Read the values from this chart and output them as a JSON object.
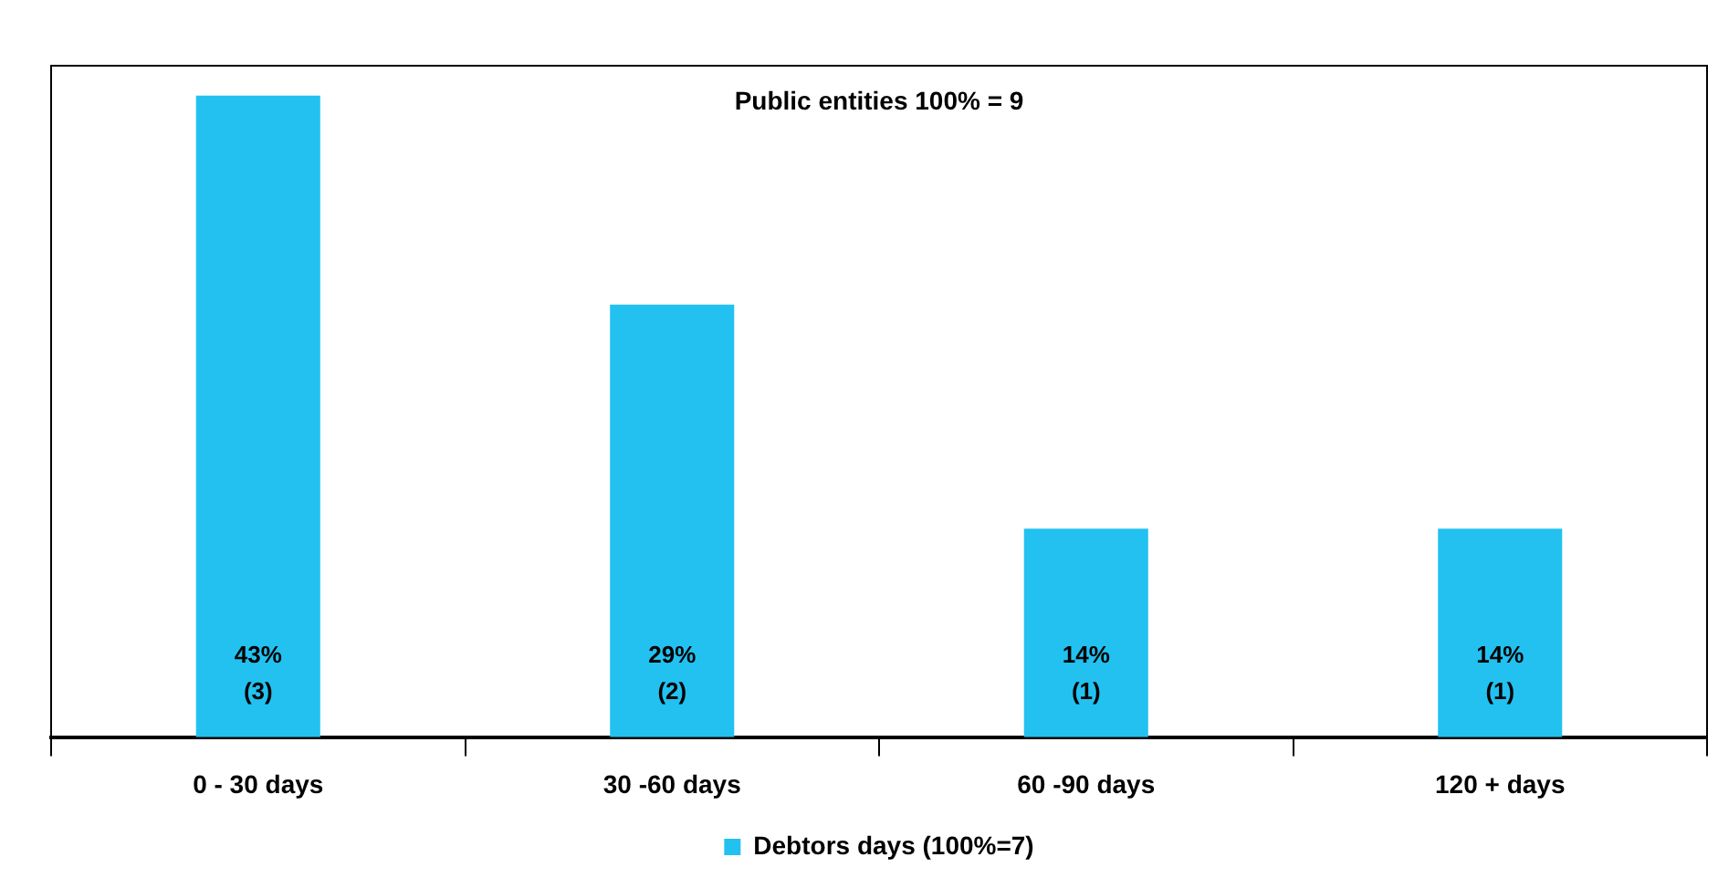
{
  "chart_data": {
    "type": "bar",
    "title": "Public entities 100% = 9",
    "categories": [
      "0 - 30 days",
      "30 -60 days",
      "60 -90 days",
      "120 + days"
    ],
    "series": [
      {
        "name": "Debtors days (100%=7)",
        "color": "#22c1f0",
        "values": [
          43,
          29,
          14,
          14
        ],
        "value_labels": [
          "43%\n(3)",
          "29%\n(2)",
          "14%\n(1)",
          "14%\n(1)"
        ]
      }
    ],
    "grid": false,
    "legend": "bottom"
  }
}
